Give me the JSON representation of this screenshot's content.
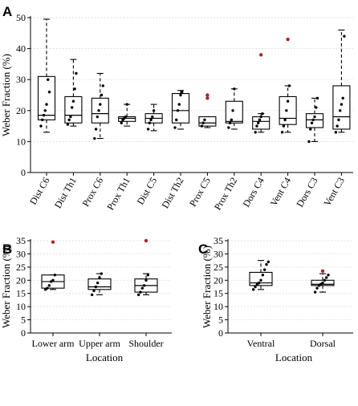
{
  "chart_data": [
    {
      "panel": "A",
      "type": "box",
      "ylabel": "Weber Fraction (%)",
      "xlabel": "",
      "ylim": [
        0,
        50
      ],
      "yticks": [
        0,
        10,
        20,
        30,
        40,
        50
      ],
      "grid": true,
      "categories": [
        "Dist C6",
        "Dist Th1",
        "Prox C6",
        "Prox Th1",
        "Dist C5",
        "Dist Th2",
        "Prox C5",
        "Prox Th2",
        "Dors C4",
        "Vent C4",
        "Dors C3",
        "Vent C3"
      ],
      "boxes": [
        {
          "whislo": 13,
          "q1": 17,
          "med": 18.5,
          "q3": 31,
          "whishi": 49.5,
          "points": [
            15,
            17,
            18.5,
            20,
            22,
            30,
            26
          ],
          "outliers": []
        },
        {
          "whislo": 15,
          "q1": 16,
          "med": 18.5,
          "q3": 24.5,
          "whishi": 36.5,
          "points": [
            15.5,
            17,
            18,
            21,
            23,
            27,
            32
          ],
          "outliers": []
        },
        {
          "whislo": 11,
          "q1": 16,
          "med": 19,
          "q3": 24,
          "whishi": 32,
          "points": [
            11,
            14,
            18,
            20,
            22,
            25,
            28
          ],
          "outliers": []
        },
        {
          "whislo": 15,
          "q1": 16.5,
          "med": 17.5,
          "q3": 18,
          "whishi": 22,
          "points": [
            16,
            17,
            17.5,
            18,
            22
          ],
          "outliers": []
        },
        {
          "whislo": 13.5,
          "q1": 16,
          "med": 17.5,
          "q3": 19,
          "whishi": 22,
          "points": [
            14,
            16,
            17,
            18,
            20
          ],
          "outliers": []
        },
        {
          "whislo": 14,
          "q1": 16,
          "med": 20,
          "q3": 25.5,
          "whishi": 26.5,
          "points": [
            14.5,
            17,
            20,
            22,
            25,
            26
          ],
          "outliers": []
        },
        {
          "whislo": 14.5,
          "q1": 15,
          "med": 16,
          "q3": 18,
          "whishi": 18,
          "points": [
            15,
            16,
            17
          ],
          "outliers": [
            24,
            25
          ]
        },
        {
          "whislo": 14,
          "q1": 16,
          "med": 16.5,
          "q3": 23,
          "whishi": 27,
          "points": [
            14.5,
            16,
            17,
            20,
            27
          ],
          "outliers": []
        },
        {
          "whislo": 13,
          "q1": 14,
          "med": 16.5,
          "q3": 18,
          "whishi": 19,
          "points": [
            13,
            15,
            16,
            17,
            18,
            19
          ],
          "outliers": [
            38
          ]
        },
        {
          "whislo": 13,
          "q1": 15.5,
          "med": 17.5,
          "q3": 24.5,
          "whishi": 28,
          "points": [
            13,
            15,
            17,
            20,
            23,
            28
          ],
          "outliers": [
            43
          ]
        },
        {
          "whislo": 10,
          "q1": 14.5,
          "med": 17,
          "q3": 19,
          "whishi": 24,
          "points": [
            10,
            14,
            16,
            17,
            18,
            21,
            24
          ],
          "outliers": []
        },
        {
          "whislo": 13,
          "q1": 14,
          "med": 18,
          "q3": 28,
          "whishi": 46,
          "points": [
            13,
            15,
            17,
            20,
            22,
            24,
            44
          ],
          "outliers": []
        }
      ]
    },
    {
      "panel": "B",
      "type": "box",
      "ylabel": "Weber Fraction (%)",
      "xlabel": "Location",
      "ylim": [
        0,
        35
      ],
      "yticks": [
        0,
        5,
        10,
        15,
        20,
        25,
        30,
        35
      ],
      "grid": true,
      "categories": [
        "Lower arm",
        "Upper arm",
        "Shoulder"
      ],
      "boxes": [
        {
          "whislo": 16.5,
          "q1": 17,
          "med": 19.5,
          "q3": 22,
          "whishi": 22,
          "points": [
            16.5,
            17,
            18,
            19.5,
            20,
            22
          ],
          "outliers": [
            34.5
          ]
        },
        {
          "whislo": 14.5,
          "q1": 16.5,
          "med": 17.5,
          "q3": 20.5,
          "whishi": 22.5,
          "points": [
            14.5,
            16,
            17.5,
            19,
            21,
            22.5
          ],
          "outliers": []
        },
        {
          "whislo": 14.5,
          "q1": 15.5,
          "med": 18,
          "q3": 20.5,
          "whishi": 22.5,
          "points": [
            14.5,
            15.5,
            17,
            18,
            20,
            22
          ],
          "outliers": [
            35
          ]
        }
      ]
    },
    {
      "panel": "C",
      "type": "box",
      "ylabel": "Weber Fraction (%)",
      "xlabel": "Location",
      "ylim": [
        0,
        35
      ],
      "yticks": [
        0,
        5,
        10,
        15,
        20,
        25,
        30,
        35
      ],
      "grid": true,
      "categories": [
        "Ventral",
        "Dorsal"
      ],
      "boxes": [
        {
          "whislo": 16.5,
          "q1": 18,
          "med": 19,
          "q3": 23,
          "whishi": 27.5,
          "points": [
            16.5,
            17.5,
            18.5,
            19,
            20,
            22,
            24,
            26,
            27
          ]
        },
        {
          "whislo": 15.5,
          "q1": 18,
          "med": 18.5,
          "q3": 20,
          "whishi": 22.5,
          "points": [
            15.5,
            17,
            18,
            18.5,
            19,
            20,
            21,
            22
          ],
          "outliers": [
            23.5
          ]
        }
      ]
    }
  ]
}
